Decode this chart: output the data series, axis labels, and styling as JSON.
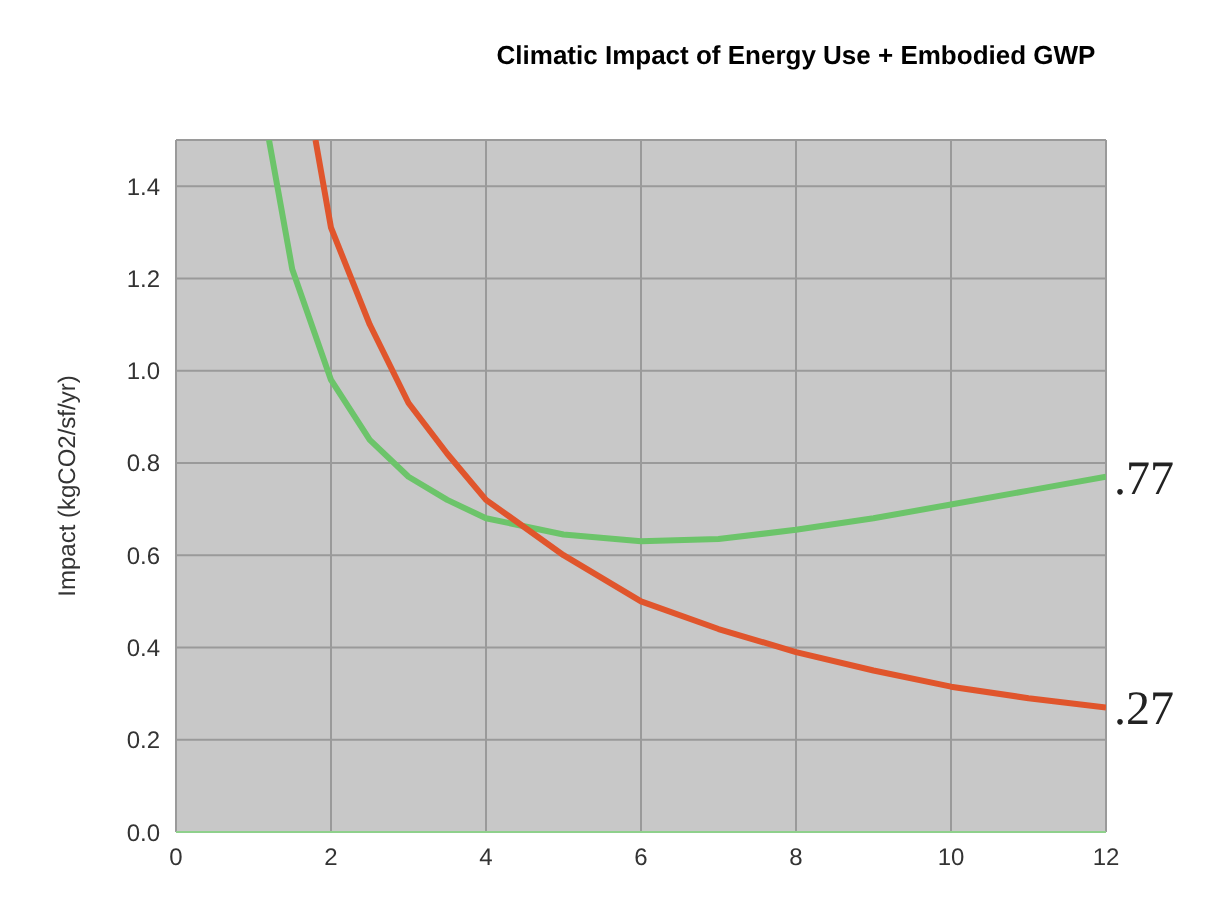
{
  "chart_data": {
    "type": "line",
    "title": "Climatic Impact of Energy Use + Embodied GWP",
    "ylabel": "Impact (kgCO2/sf/yr)",
    "series": [
      {
        "color": "#6cc46a",
        "x": [
          1.2,
          1.5,
          2,
          2.5,
          3,
          3.5,
          4,
          5,
          6,
          7,
          8,
          9,
          10,
          11,
          12
        ],
        "values": [
          1.5,
          1.22,
          0.98,
          0.85,
          0.77,
          0.72,
          0.68,
          0.645,
          0.63,
          0.635,
          0.655,
          0.68,
          0.71,
          0.74,
          0.77
        ]
      },
      {
        "color": "#e0552c",
        "x": [
          1.8,
          2,
          2.5,
          3,
          3.5,
          4,
          5,
          6,
          7,
          8,
          9,
          10,
          11,
          12
        ],
        "values": [
          1.5,
          1.31,
          1.1,
          0.93,
          0.82,
          0.72,
          0.6,
          0.5,
          0.44,
          0.39,
          0.35,
          0.315,
          0.29,
          0.27
        ]
      }
    ],
    "xlim": [
      0,
      12
    ],
    "xticks": [
      0,
      2,
      4,
      6,
      8,
      10,
      12
    ],
    "ylim": [
      0,
      1.5
    ],
    "yticks": [
      {
        "value": 0,
        "label": "0.0"
      },
      0.2,
      0.4,
      0.6,
      0.8,
      {
        "value": 1,
        "label": "1.0"
      },
      1.2,
      1.4
    ],
    "grid": true,
    "marker": "none",
    "line_style": "solid",
    "annotations": [
      {
        "text": ".77",
        "x": 12,
        "y": 0.77
      },
      {
        "text": ".27",
        "x": 12,
        "y": 0.27
      }
    ]
  }
}
